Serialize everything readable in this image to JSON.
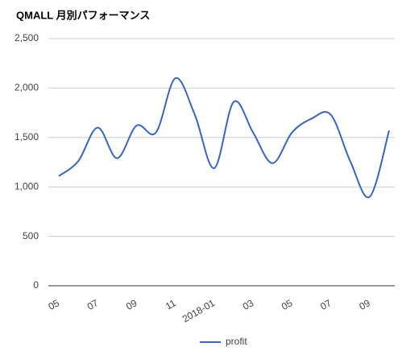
{
  "chart_data": {
    "type": "line",
    "title": "QMALL 月別パフォーマンス",
    "categories": [
      "05",
      null,
      "07",
      null,
      "09",
      null,
      "11",
      null,
      "2018-01",
      null,
      "03",
      null,
      "05",
      null,
      "07",
      null,
      "09",
      null
    ],
    "series": [
      {
        "name": "profit",
        "color": "#3366cc",
        "values": [
          1110,
          1260,
          1600,
          1290,
          1620,
          1550,
          2100,
          1730,
          1190,
          1860,
          1550,
          1240,
          1550,
          1690,
          1730,
          1260,
          900,
          1570
        ]
      }
    ],
    "ylim": [
      0,
      2500
    ],
    "yticks": [
      0,
      500,
      {
        "value": 1000,
        "label": "1,000"
      },
      {
        "value": 1500,
        "label": "1,500"
      },
      {
        "value": 2000,
        "label": "2,000"
      },
      {
        "value": 2500,
        "label": "2,500"
      }
    ],
    "grid": true,
    "legend": "bottom"
  }
}
